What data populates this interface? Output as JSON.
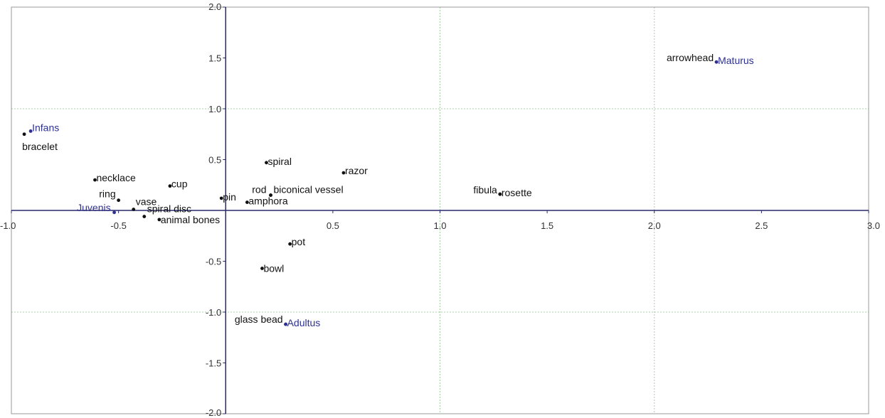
{
  "chart_data": {
    "type": "scatter",
    "title": "",
    "xlabel": "",
    "ylabel": "",
    "xlim": [
      -1.0,
      3.0
    ],
    "ylim": [
      -2.0,
      2.0
    ],
    "grid": true,
    "x_ticks": [
      {
        "value": -1.0,
        "label": "-1.0"
      },
      {
        "value": -0.5,
        "label": "-0.5"
      },
      {
        "value": 0.5,
        "label": "0.5"
      },
      {
        "value": 1.0,
        "label": "1.0"
      },
      {
        "value": 1.5,
        "label": "1.5"
      },
      {
        "value": 2.0,
        "label": "2.0"
      },
      {
        "value": 2.5,
        "label": "2.5"
      },
      {
        "value": 3.0,
        "label": "3.0"
      }
    ],
    "y_ticks": [
      {
        "value": 2.0,
        "label": "2.0"
      },
      {
        "value": 1.5,
        "label": "1.5"
      },
      {
        "value": 1.0,
        "label": "1.0"
      },
      {
        "value": 0.5,
        "label": "0.5"
      },
      {
        "value": -0.5,
        "label": "-0.5"
      },
      {
        "value": -1.0,
        "label": "-1.0"
      },
      {
        "value": -1.5,
        "label": "-1.5"
      },
      {
        "value": -2.0,
        "label": "-2.0"
      }
    ],
    "colors": {
      "grave_goods": "#111111",
      "age_groups": "#2e3192",
      "axis": "#2a2a6a",
      "grid": "#a8cfa8",
      "frame": "#9a9a9a"
    },
    "series": [
      {
        "points": [
          {
            "label": "bracelet",
            "x": -0.94,
            "y": 0.75
          },
          {
            "label": "necklace",
            "x": -0.61,
            "y": 0.3
          },
          {
            "label": "ring",
            "x": -0.5,
            "y": 0.1
          },
          {
            "label": "vase",
            "x": -0.43,
            "y": 0.01
          },
          {
            "label": "cup",
            "x": -0.26,
            "y": 0.24
          },
          {
            "label": "spiral disc",
            "x": -0.38,
            "y": -0.06
          },
          {
            "label": "animal bones",
            "x": -0.31,
            "y": -0.09
          },
          {
            "label": "pin",
            "x": -0.02,
            "y": 0.12
          },
          {
            "label": "spiral",
            "x": 0.19,
            "y": 0.47
          },
          {
            "label": "rod",
            "x": 0.21,
            "y": 0.15
          },
          {
            "label": "biconical vessel",
            "x": 0.21,
            "y": 0.15
          },
          {
            "label": "amphora",
            "x": 0.1,
            "y": 0.08
          },
          {
            "label": "razor",
            "x": 0.55,
            "y": 0.37
          },
          {
            "label": "pot",
            "x": 0.3,
            "y": -0.33
          },
          {
            "label": "bowl",
            "x": 0.17,
            "y": -0.57
          },
          {
            "label": "glass bead",
            "x": 0.28,
            "y": -1.12
          },
          {
            "label": "fibula",
            "x": 1.28,
            "y": 0.16
          },
          {
            "label": "rosette",
            "x": 1.28,
            "y": 0.16
          },
          {
            "label": "arrowhead",
            "x": 2.29,
            "y": 1.46
          }
        ]
      },
      {
        "points": [
          {
            "label": "Infans",
            "x": -0.91,
            "y": 0.78
          },
          {
            "label": "Juvenis",
            "x": -0.52,
            "y": -0.02
          },
          {
            "label": "Adultus",
            "x": 0.28,
            "y": -1.12
          },
          {
            "label": "Maturus",
            "x": 2.29,
            "y": 1.46
          }
        ]
      }
    ]
  }
}
